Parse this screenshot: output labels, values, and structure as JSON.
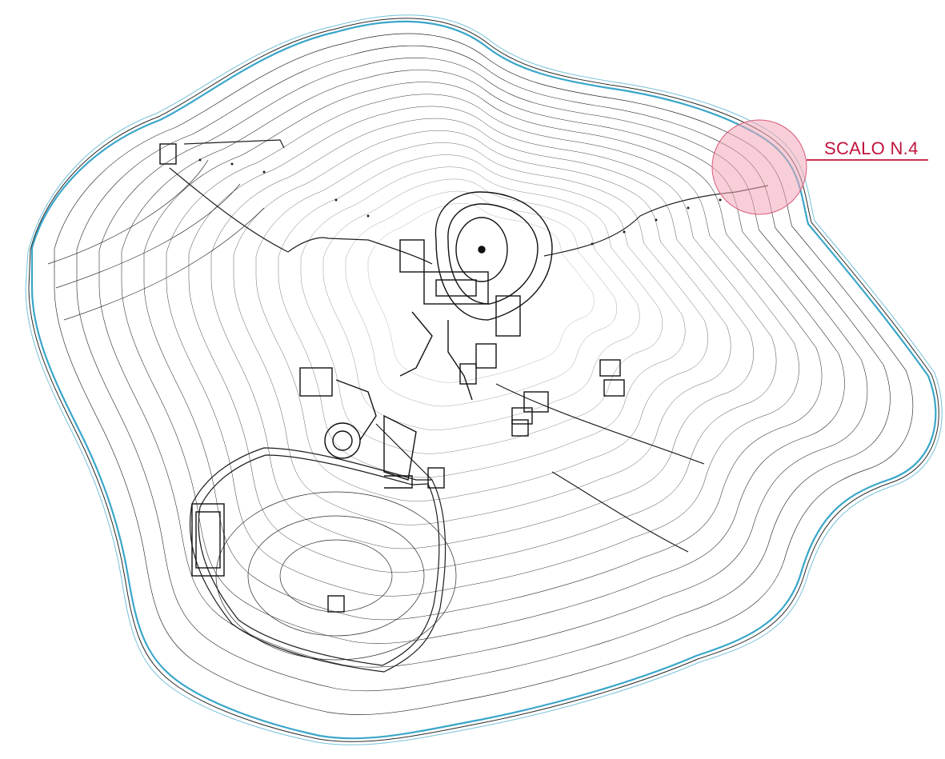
{
  "map": {
    "callout": {
      "label": "SCALO N.4",
      "color": "#c0143c",
      "circle_fill": "#f2a7b8"
    },
    "colors": {
      "coastline": "#3aa6c9",
      "contour": "#2a2a2a",
      "background": "#ffffff"
    }
  }
}
